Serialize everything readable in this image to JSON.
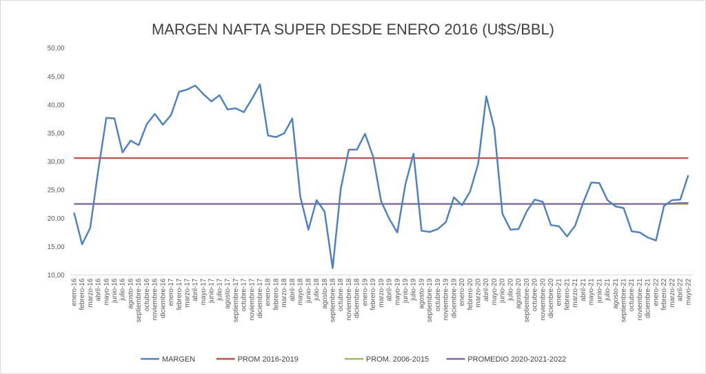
{
  "chart_data": {
    "type": "line",
    "title": "MARGEN NAFTA SUPER DESDE ENERO 2016 (U$S/BBL)",
    "xlabel": "",
    "ylabel": "",
    "ylim": [
      10,
      50
    ],
    "yticks": [
      "10,00",
      "15,00",
      "20,00",
      "25,00",
      "30,00",
      "35,00",
      "40,00",
      "45,00",
      "50,00"
    ],
    "grid": false,
    "legend_position": "bottom",
    "categories": [
      "enero-16",
      "febrero-16",
      "marzo-16",
      "abril-16",
      "mayo-16",
      "junio-16",
      "julio-16",
      "agosto-16",
      "septiembre-16",
      "octubre-16",
      "noviembre-16",
      "diciembre-16",
      "enero-17",
      "febrero-17",
      "marzo-17",
      "abril-17",
      "mayo-17",
      "junio-17",
      "julio-17",
      "agosto-17",
      "septiembre-17",
      "octubre-17",
      "noviembre-17",
      "diciembre-17",
      "enero-18",
      "febrero-18",
      "marzo-18",
      "abril-18",
      "mayo-18",
      "junio-18",
      "julio-18",
      "agosto-18",
      "septiembre-18",
      "octubre-18",
      "noviembre-18",
      "diciembre-18",
      "enero-19",
      "febrero-19",
      "marzo-19",
      "abril-19",
      "mayo-19",
      "junio-19",
      "julio-19",
      "agosto-19",
      "septiembre-19",
      "octubre-19",
      "noviembre-19",
      "diciembre-19",
      "enero-20",
      "febrero-20",
      "marzo-20",
      "abril-20",
      "mayo-20",
      "junio-20",
      "julio-20",
      "agosto-20",
      "septiembre-20",
      "octubre-20",
      "noviembre-20",
      "diciembre-20",
      "enero-21",
      "febrero-21",
      "marzo-21",
      "abril-21",
      "mayo-21",
      "junio-21",
      "julio-21",
      "agosto-21",
      "septiembre-21",
      "octubre-21",
      "noviembre-21",
      "diciembre-21",
      "enero-22",
      "febrero-22",
      "marzo-22",
      "abril-22",
      "mayo-22"
    ],
    "series": [
      {
        "name": "MARGEN",
        "color": "#4f81bd",
        "values": [
          21.0,
          15.4,
          18.3,
          28.5,
          37.7,
          37.6,
          31.6,
          33.7,
          32.9,
          36.6,
          38.4,
          36.5,
          38.2,
          42.3,
          42.7,
          43.4,
          41.9,
          40.6,
          41.7,
          39.2,
          39.4,
          38.7,
          41.0,
          43.6,
          34.6,
          34.3,
          35.0,
          37.6,
          23.8,
          18.0,
          23.2,
          21.2,
          11.2,
          25.2,
          32.1,
          32.1,
          34.9,
          30.9,
          23.0,
          19.9,
          17.5,
          26.0,
          31.4,
          17.8,
          17.6,
          18.1,
          19.3,
          23.7,
          22.3,
          24.7,
          29.6,
          41.5,
          35.8,
          20.8,
          18.0,
          18.1,
          21.2,
          23.3,
          22.9,
          18.8,
          18.6,
          16.8,
          18.7,
          22.8,
          26.3,
          26.2,
          23.2,
          22.1,
          21.8,
          17.7,
          17.5,
          16.6,
          16.1,
          22.2,
          23.2,
          23.3,
          27.6
        ]
      },
      {
        "name": "PROM 2016-2019",
        "color": "#c0504d",
        "values": [
          30.6,
          30.6,
          30.6,
          30.6,
          30.6,
          30.6,
          30.6,
          30.6,
          30.6,
          30.6,
          30.6,
          30.6,
          30.6,
          30.6,
          30.6,
          30.6,
          30.6,
          30.6,
          30.6,
          30.6,
          30.6,
          30.6,
          30.6,
          30.6,
          30.6,
          30.6,
          30.6,
          30.6,
          30.6,
          30.6,
          30.6,
          30.6,
          30.6,
          30.6,
          30.6,
          30.6,
          30.6,
          30.6,
          30.6,
          30.6,
          30.6,
          30.6,
          30.6,
          30.6,
          30.6,
          30.6,
          30.6,
          30.6,
          30.6,
          30.6,
          30.6,
          30.6,
          30.6,
          30.6,
          30.6,
          30.6,
          30.6,
          30.6,
          30.6,
          30.6,
          30.6,
          30.6,
          30.6,
          30.6,
          30.6,
          30.6,
          30.6,
          30.6,
          30.6,
          30.6,
          30.6,
          30.6,
          30.6,
          30.6,
          30.6,
          30.6,
          30.6
        ]
      },
      {
        "name": "PROM. 2006-2015",
        "color": "#9bbb59",
        "values": [
          22.5,
          22.5,
          22.5,
          22.5,
          22.5,
          22.5,
          22.5,
          22.5,
          22.5,
          22.5,
          22.5,
          22.5,
          22.5,
          22.5,
          22.5,
          22.5,
          22.5,
          22.5,
          22.5,
          22.5,
          22.5,
          22.5,
          22.5,
          22.5,
          22.5,
          22.5,
          22.5,
          22.5,
          22.5,
          22.5,
          22.5,
          22.5,
          22.5,
          22.5,
          22.5,
          22.5,
          22.5,
          22.5,
          22.5,
          22.5,
          22.5,
          22.5,
          22.5,
          22.5,
          22.5,
          22.5,
          22.5,
          22.5,
          22.5,
          22.5,
          22.5,
          22.5,
          22.5,
          22.5,
          22.5,
          22.5,
          22.5,
          22.5,
          22.5,
          22.5,
          22.5,
          22.5,
          22.5,
          22.5,
          22.5,
          22.5,
          22.5,
          22.5,
          22.5,
          22.5,
          22.5,
          22.5,
          22.5,
          22.5,
          22.5,
          22.5,
          22.5
        ]
      },
      {
        "name": "PROMEDIO 2020-2021-2022",
        "color": "#8064a2",
        "values": [
          22.55,
          22.55,
          22.55,
          22.55,
          22.55,
          22.55,
          22.55,
          22.55,
          22.55,
          22.55,
          22.55,
          22.55,
          22.55,
          22.55,
          22.55,
          22.55,
          22.55,
          22.55,
          22.55,
          22.55,
          22.55,
          22.55,
          22.55,
          22.55,
          22.55,
          22.55,
          22.55,
          22.55,
          22.55,
          22.55,
          22.55,
          22.55,
          22.55,
          22.55,
          22.55,
          22.55,
          22.55,
          22.55,
          22.55,
          22.55,
          22.55,
          22.55,
          22.55,
          22.55,
          22.55,
          22.55,
          22.55,
          22.55,
          22.55,
          22.55,
          22.55,
          22.55,
          22.55,
          22.55,
          22.55,
          22.55,
          22.55,
          22.55,
          22.55,
          22.55,
          22.55,
          22.55,
          22.55,
          22.55,
          22.55,
          22.55,
          22.55,
          22.55,
          22.55,
          22.55,
          22.55,
          22.55,
          22.55,
          22.55,
          22.6,
          22.7,
          22.7
        ]
      }
    ]
  }
}
